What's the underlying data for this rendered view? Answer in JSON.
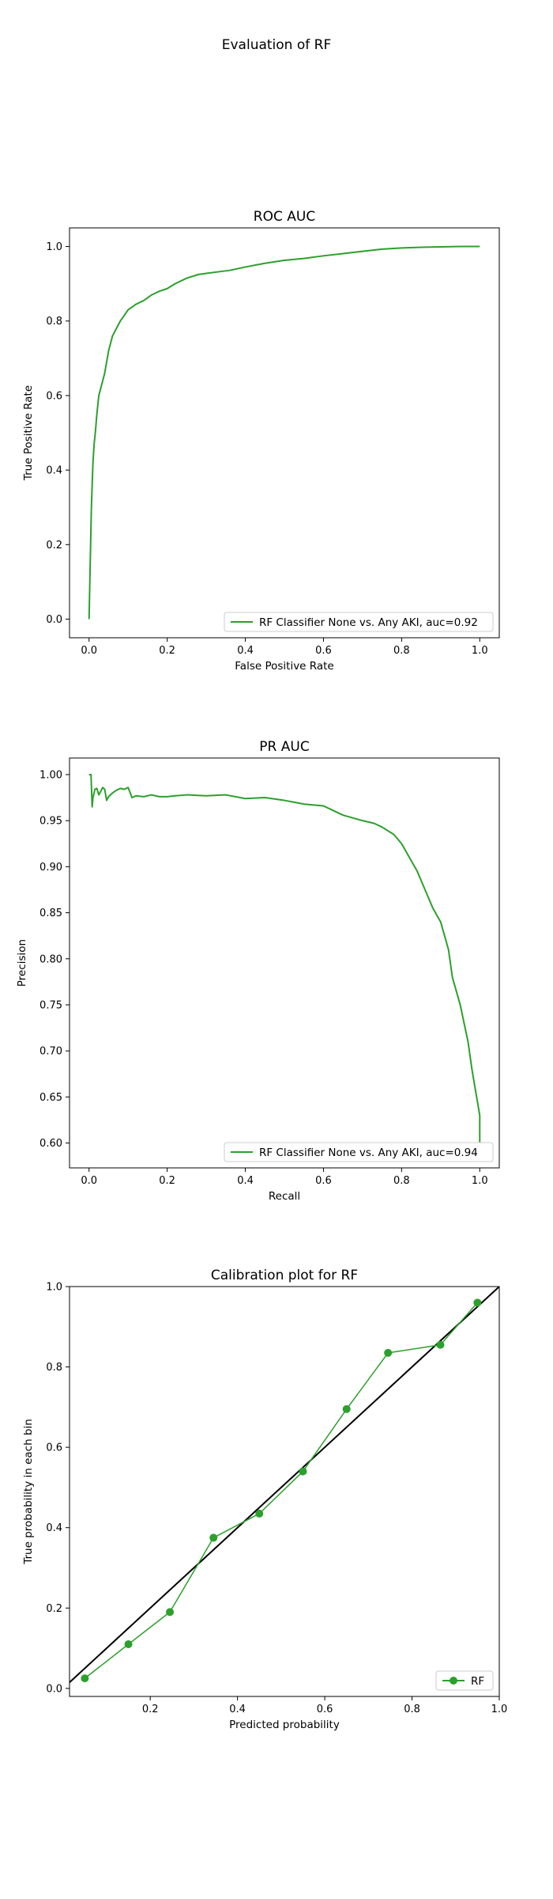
{
  "figure_title": "Evaluation of RF",
  "colors": {
    "series": "#2ca02c",
    "reference": "#000000",
    "legend_border": "#cccccc"
  },
  "chart_data": [
    {
      "type": "line",
      "title": "ROC AUC",
      "xlabel": "False Positive Rate",
      "ylabel": "True Positive Rate",
      "xlim": [
        -0.05,
        1.05
      ],
      "ylim": [
        -0.05,
        1.05
      ],
      "xticks": [
        0.0,
        0.2,
        0.4,
        0.6,
        0.8,
        1.0
      ],
      "yticks": [
        0.0,
        0.2,
        0.4,
        0.6,
        0.8,
        1.0
      ],
      "grid": false,
      "legend_position": "lower right",
      "series": [
        {
          "name": "RF Classifier None vs. Any AKI, auc=0.92",
          "x": [
            0,
            0.002,
            0.004,
            0.006,
            0.008,
            0.01,
            0.013,
            0.016,
            0.02,
            0.025,
            0.03,
            0.035,
            0.04,
            0.045,
            0.05,
            0.055,
            0.06,
            0.07,
            0.08,
            0.09,
            0.1,
            0.12,
            0.14,
            0.16,
            0.18,
            0.2,
            0.22,
            0.25,
            0.28,
            0.3,
            0.33,
            0.36,
            0.4,
            0.45,
            0.5,
            0.55,
            0.6,
            0.65,
            0.7,
            0.75,
            0.8,
            0.85,
            0.9,
            0.95,
            1.0
          ],
          "y": [
            0,
            0.1,
            0.2,
            0.3,
            0.36,
            0.42,
            0.47,
            0.5,
            0.55,
            0.6,
            0.62,
            0.64,
            0.66,
            0.69,
            0.72,
            0.74,
            0.76,
            0.78,
            0.8,
            0.815,
            0.83,
            0.845,
            0.855,
            0.87,
            0.88,
            0.887,
            0.9,
            0.915,
            0.925,
            0.928,
            0.932,
            0.936,
            0.945,
            0.955,
            0.963,
            0.968,
            0.975,
            0.981,
            0.987,
            0.993,
            0.996,
            0.998,
            0.999,
            1.0,
            1.0
          ]
        }
      ]
    },
    {
      "type": "line",
      "title": "PR AUC",
      "xlabel": "Recall",
      "ylabel": "Precision",
      "xlim": [
        -0.05,
        1.05
      ],
      "ylim": [
        0.573,
        1.018
      ],
      "xticks": [
        0.0,
        0.2,
        0.4,
        0.6,
        0.8,
        1.0
      ],
      "yticks": [
        0.6,
        0.65,
        0.7,
        0.75,
        0.8,
        0.85,
        0.9,
        0.95,
        1.0
      ],
      "grid": false,
      "legend_position": "lower right",
      "series": [
        {
          "name": "RF Classifier None vs. Any AKI, auc=0.94",
          "x": [
            0,
            0.005,
            0.008,
            0.01,
            0.015,
            0.02,
            0.025,
            0.03,
            0.035,
            0.04,
            0.045,
            0.05,
            0.06,
            0.07,
            0.08,
            0.09,
            0.1,
            0.11,
            0.12,
            0.14,
            0.16,
            0.18,
            0.2,
            0.22,
            0.25,
            0.3,
            0.35,
            0.4,
            0.45,
            0.5,
            0.55,
            0.6,
            0.62,
            0.65,
            0.7,
            0.73,
            0.75,
            0.78,
            0.8,
            0.82,
            0.84,
            0.86,
            0.88,
            0.9,
            0.92,
            0.93,
            0.95,
            0.96,
            0.97,
            0.98,
            0.99,
            1.0,
            1.0
          ],
          "y": [
            1.0,
            1.0,
            0.965,
            0.975,
            0.984,
            0.985,
            0.978,
            0.982,
            0.986,
            0.984,
            0.972,
            0.976,
            0.98,
            0.983,
            0.985,
            0.984,
            0.986,
            0.975,
            0.977,
            0.976,
            0.978,
            0.976,
            0.976,
            0.977,
            0.978,
            0.977,
            0.978,
            0.974,
            0.975,
            0.972,
            0.968,
            0.966,
            0.962,
            0.956,
            0.95,
            0.947,
            0.943,
            0.935,
            0.925,
            0.91,
            0.895,
            0.875,
            0.855,
            0.84,
            0.81,
            0.78,
            0.75,
            0.73,
            0.71,
            0.68,
            0.655,
            0.63,
            0.6
          ]
        }
      ]
    },
    {
      "type": "line",
      "title": "Calibration plot for RF",
      "xlabel": "Predicted probability",
      "ylabel": "True probability in each bin",
      "xlim": [
        0.015,
        1.0
      ],
      "ylim": [
        -0.02,
        1.0
      ],
      "xticks": [
        0.2,
        0.4,
        0.6,
        0.8,
        1.0
      ],
      "yticks": [
        0.0,
        0.2,
        0.4,
        0.6,
        0.8,
        1.0
      ],
      "grid": false,
      "legend_position": "lower right",
      "reference_line": {
        "x": [
          0,
          1
        ],
        "y": [
          0,
          1
        ]
      },
      "series": [
        {
          "name": "RF",
          "markers": true,
          "x": [
            0.05,
            0.15,
            0.245,
            0.345,
            0.45,
            0.55,
            0.65,
            0.745,
            0.865,
            0.95
          ],
          "y": [
            0.025,
            0.11,
            0.19,
            0.375,
            0.435,
            0.54,
            0.695,
            0.835,
            0.855,
            0.96
          ]
        }
      ]
    }
  ]
}
